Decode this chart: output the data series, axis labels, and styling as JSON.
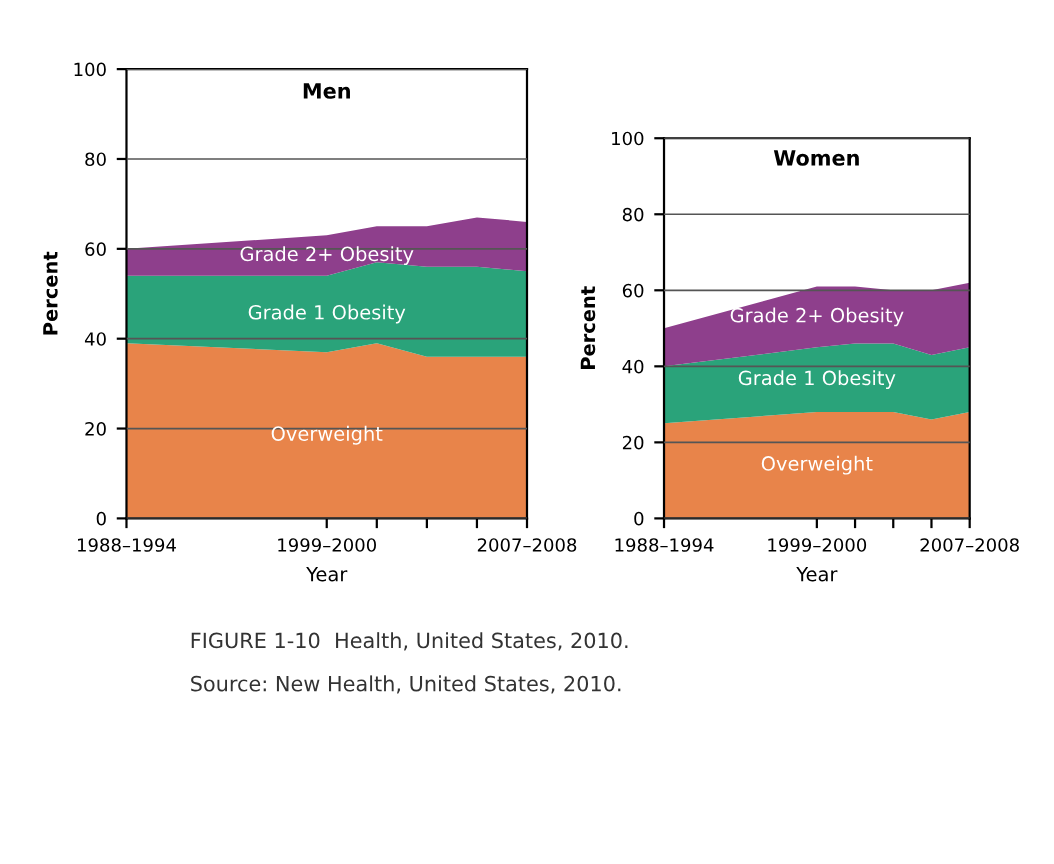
{
  "chart_data": [
    {
      "type": "area",
      "stacked": true,
      "title": "Men",
      "xlabel": "Year",
      "ylabel": "Percent",
      "grid": "y",
      "categories": [
        "1988–1994",
        null,
        null,
        null,
        "1999–2000",
        null,
        null,
        null,
        "2007–2008"
      ],
      "ylim": [
        0,
        100
      ],
      "yticks": [
        0,
        20,
        40,
        60,
        80,
        100
      ],
      "series": [
        {
          "name": "Overweight",
          "color": "#e8844a",
          "values": [
            39,
            null,
            null,
            null,
            37,
            39,
            36,
            36,
            36
          ]
        },
        {
          "name": "Grade 1 Obesity",
          "color": "#2aa37a",
          "values": [
            15,
            null,
            null,
            null,
            17,
            18,
            20,
            20,
            19
          ]
        },
        {
          "name": "Grade 2+ Obesity",
          "color": "#8e3f8c",
          "values": [
            6,
            null,
            null,
            null,
            9,
            8,
            9,
            11,
            11
          ]
        }
      ],
      "annotations": [
        "FIGURE 1-10  Health, United States, 2010.",
        "Source: New Health, United States, 2010."
      ]
    },
    {
      "type": "area",
      "stacked": true,
      "title": "Women",
      "xlabel": "Year",
      "ylabel": "Percent",
      "grid": "y",
      "categories": [
        "1988–1994",
        null,
        null,
        null,
        "1999–2000",
        null,
        null,
        null,
        "2007–2008"
      ],
      "ylim": [
        0,
        100
      ],
      "yticks": [
        0,
        20,
        40,
        60,
        80,
        100
      ],
      "series": [
        {
          "name": "Overweight",
          "color": "#e8844a",
          "values": [
            25,
            null,
            null,
            null,
            28,
            28,
            28,
            26,
            28
          ]
        },
        {
          "name": "Grade 1 Obesity",
          "color": "#2aa37a",
          "values": [
            15,
            null,
            null,
            null,
            17,
            18,
            18,
            17,
            17
          ]
        },
        {
          "name": "Grade 2+ Obesity",
          "color": "#8e3f8c",
          "values": [
            10,
            null,
            null,
            null,
            16,
            15,
            14,
            17,
            17
          ]
        }
      ]
    }
  ]
}
